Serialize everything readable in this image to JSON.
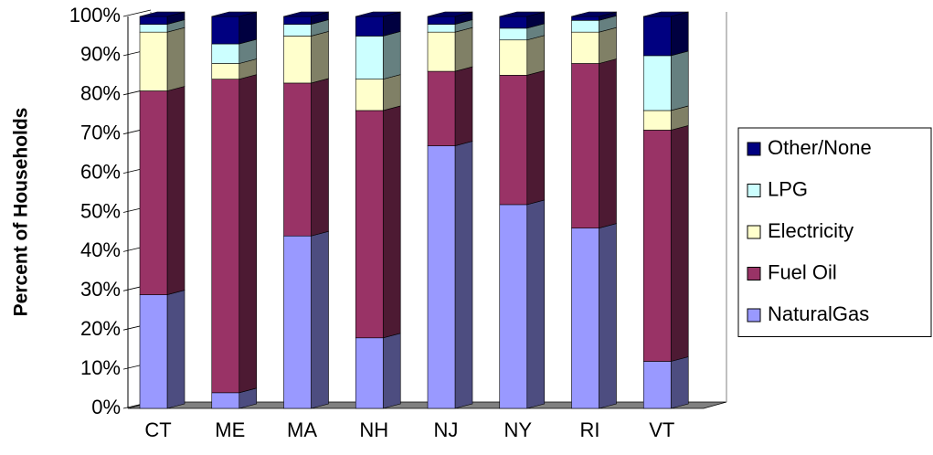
{
  "chart_data": {
    "type": "bar3d-stacked",
    "y_label": "Percent of Households",
    "categories": [
      "CT",
      "ME",
      "MA",
      "NH",
      "NJ",
      "NY",
      "RI",
      "VT"
    ],
    "series": [
      {
        "name": "NaturalGas",
        "color": "#9999ff",
        "values": [
          29,
          4,
          44,
          18,
          67,
          52,
          46,
          12
        ]
      },
      {
        "name": "Fuel Oil",
        "color": "#993366",
        "values": [
          52,
          80,
          39,
          58,
          19,
          33,
          42,
          59
        ]
      },
      {
        "name": "Electricity",
        "color": "#ffffcc",
        "values": [
          15,
          4,
          12,
          8,
          10,
          9,
          8,
          5
        ]
      },
      {
        "name": "LPG",
        "color": "#ccffff",
        "values": [
          2,
          5,
          3,
          11,
          2,
          3,
          3,
          14
        ]
      },
      {
        "name": "Other/None",
        "color": "#000080",
        "values": [
          2,
          7,
          2,
          5,
          2,
          3,
          1,
          10
        ]
      }
    ],
    "ylim": [
      0,
      100
    ],
    "yticks": [
      {
        "value": 0,
        "label": "0%"
      },
      {
        "value": 10,
        "label": "10%"
      },
      {
        "value": 20,
        "label": "20%"
      },
      {
        "value": 30,
        "label": "30%"
      },
      {
        "value": 40,
        "label": "40%"
      },
      {
        "value": 50,
        "label": "50%"
      },
      {
        "value": 60,
        "label": "60%"
      },
      {
        "value": 70,
        "label": "70%"
      },
      {
        "value": 80,
        "label": "80%"
      },
      {
        "value": 90,
        "label": "90%"
      },
      {
        "value": 100,
        "label": "100%"
      }
    ],
    "legend": "right"
  }
}
